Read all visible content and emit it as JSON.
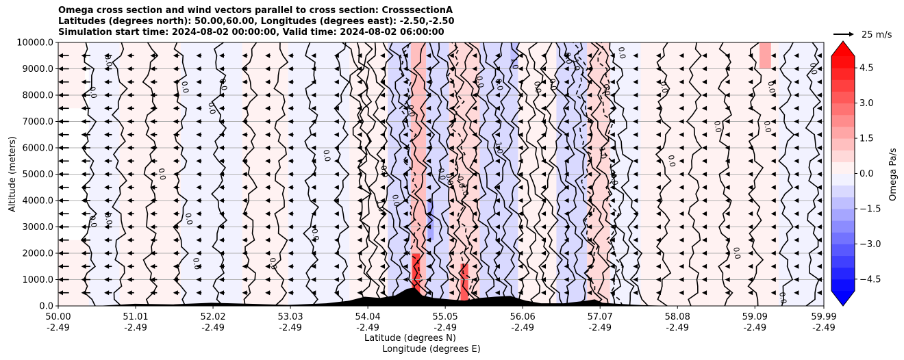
{
  "title_lines": [
    "Omega cross section and wind vectors parallel to cross section: CrosssectionA",
    "Latitudes (degrees north): 50.00,60.00, Longitudes (degrees east): -2.50,-2.50",
    "Simulation start time: 2024-08-02 00:00:00, Valid time: 2024-08-02 06:00:00"
  ],
  "quiver_key": {
    "label": "25 m/s",
    "speed": 25
  },
  "chart_data": {
    "type": "heatmap",
    "title": "Omega cross section and wind vectors parallel to cross section: CrosssectionA",
    "ylabel": "Altitude (meters)",
    "xlabel_lines": [
      "Latitude (degrees N)",
      "Longitude (degrees E)"
    ],
    "ylim": [
      0,
      10000
    ],
    "xlim": [
      50.0,
      59.99
    ],
    "y_ticks": [
      {
        "value": 0,
        "label": "0.0"
      },
      {
        "value": 1000,
        "label": "1000.0"
      },
      {
        "value": 2000,
        "label": "2000.0"
      },
      {
        "value": 3000,
        "label": "3000.0"
      },
      {
        "value": 4000,
        "label": "4000.0"
      },
      {
        "value": 5000,
        "label": "5000.0"
      },
      {
        "value": 6000,
        "label": "6000.0"
      },
      {
        "value": 7000,
        "label": "7000.0"
      },
      {
        "value": 8000,
        "label": "8000.0"
      },
      {
        "value": 9000,
        "label": "9000.0"
      },
      {
        "value": 10000,
        "label": "10000.0"
      }
    ],
    "x_ticks": [
      {
        "lat": 50.0,
        "lat_label": "50.00",
        "lon_label": "-2.49"
      },
      {
        "lat": 51.01,
        "lat_label": "51.01",
        "lon_label": "-2.49"
      },
      {
        "lat": 52.02,
        "lat_label": "52.02",
        "lon_label": "-2.49"
      },
      {
        "lat": 53.03,
        "lat_label": "53.03",
        "lon_label": "-2.49"
      },
      {
        "lat": 54.04,
        "lat_label": "54.04",
        "lon_label": "-2.49"
      },
      {
        "lat": 55.05,
        "lat_label": "55.05",
        "lon_label": "-2.49"
      },
      {
        "lat": 56.06,
        "lat_label": "56.06",
        "lon_label": "-2.49"
      },
      {
        "lat": 57.07,
        "lat_label": "57.07",
        "lon_label": "-2.49"
      },
      {
        "lat": 58.08,
        "lat_label": "58.08",
        "lon_label": "-2.49"
      },
      {
        "lat": 59.09,
        "lat_label": "59.09",
        "lon_label": "-2.49"
      },
      {
        "lat": 59.99,
        "lat_label": "59.99",
        "lon_label": "-2.49"
      }
    ],
    "grid": "horizontal",
    "colorbar": {
      "label": "Omega Pa/s",
      "min": -5.0,
      "max": 5.0,
      "extend": "both",
      "ticks": [
        {
          "value": 4.5,
          "label": "4.5"
        },
        {
          "value": 3.0,
          "label": "3.0"
        },
        {
          "value": 1.5,
          "label": "1.5"
        },
        {
          "value": 0.0,
          "label": "0.0"
        },
        {
          "value": -1.5,
          "label": "−1.5"
        },
        {
          "value": -3.0,
          "label": "−3.0"
        },
        {
          "value": -4.5,
          "label": "−4.5"
        }
      ],
      "neg_color": "#0000ff",
      "pos_color": "#ff0000",
      "over_color": "#ff0000",
      "under_color": "#0000ff",
      "levels": 20
    },
    "omega_fill": [
      {
        "lat_start": 50.0,
        "lat_end": 50.35,
        "alt_bottom": 7500,
        "alt_top": 10000,
        "omega": 0.3
      },
      {
        "lat_start": 50.0,
        "lat_end": 50.4,
        "alt_bottom": 0,
        "alt_top": 2500,
        "omega": 0.2
      },
      {
        "lat_start": 50.4,
        "lat_end": 50.8,
        "alt_bottom": 0,
        "alt_top": 10000,
        "omega": -0.2
      },
      {
        "lat_start": 50.8,
        "lat_end": 51.6,
        "alt_bottom": 0,
        "alt_top": 10000,
        "omega": 0.2
      },
      {
        "lat_start": 51.6,
        "lat_end": 52.4,
        "alt_bottom": 0,
        "alt_top": 10000,
        "omega": -0.2
      },
      {
        "lat_start": 52.4,
        "lat_end": 53.0,
        "alt_bottom": 0,
        "alt_top": 10000,
        "omega": 0.2
      },
      {
        "lat_start": 53.0,
        "lat_end": 53.8,
        "alt_bottom": 0,
        "alt_top": 10000,
        "omega": -0.2
      },
      {
        "lat_start": 53.8,
        "lat_end": 54.3,
        "alt_bottom": 0,
        "alt_top": 10000,
        "omega": 0.3
      },
      {
        "lat_start": 54.3,
        "lat_end": 54.6,
        "alt_bottom": 0,
        "alt_top": 10000,
        "omega": -0.8
      },
      {
        "lat_start": 54.6,
        "lat_end": 54.8,
        "alt_bottom": 0,
        "alt_top": 10000,
        "omega": 1.0
      },
      {
        "lat_start": 54.8,
        "lat_end": 55.1,
        "alt_bottom": 0,
        "alt_top": 10000,
        "omega": -0.6
      },
      {
        "lat_start": 55.1,
        "lat_end": 55.5,
        "alt_bottom": 0,
        "alt_top": 10000,
        "omega": 0.6
      },
      {
        "lat_start": 55.5,
        "lat_end": 56.0,
        "alt_bottom": 0,
        "alt_top": 10000,
        "omega": -1.0
      },
      {
        "lat_start": 56.0,
        "lat_end": 56.5,
        "alt_bottom": 0,
        "alt_top": 10000,
        "omega": 0.3
      },
      {
        "lat_start": 56.5,
        "lat_end": 56.9,
        "alt_bottom": 0,
        "alt_top": 10000,
        "omega": -0.6
      },
      {
        "lat_start": 56.9,
        "lat_end": 57.2,
        "alt_bottom": 0,
        "alt_top": 10000,
        "omega": 0.8
      },
      {
        "lat_start": 57.2,
        "lat_end": 57.6,
        "alt_bottom": 0,
        "alt_top": 10000,
        "omega": -0.4
      },
      {
        "lat_start": 57.6,
        "lat_end": 58.5,
        "alt_bottom": 0,
        "alt_top": 10000,
        "omega": 0.2
      },
      {
        "lat_start": 58.5,
        "lat_end": 59.4,
        "alt_bottom": 0,
        "alt_top": 10000,
        "omega": 0.2
      },
      {
        "lat_start": 59.4,
        "lat_end": 59.99,
        "alt_bottom": 0,
        "alt_top": 10000,
        "omega": -0.2
      },
      {
        "lat_start": 54.62,
        "lat_end": 54.72,
        "alt_bottom": 0,
        "alt_top": 2000,
        "omega": 3.5
      },
      {
        "lat_start": 55.25,
        "lat_end": 55.35,
        "alt_bottom": 0,
        "alt_top": 1600,
        "omega": 3.0
      },
      {
        "lat_start": 54.82,
        "lat_end": 54.9,
        "alt_bottom": 2500,
        "alt_top": 4000,
        "omega": -2.0
      },
      {
        "lat_start": 55.9,
        "lat_end": 56.0,
        "alt_bottom": 9000,
        "alt_top": 10000,
        "omega": -1.5
      },
      {
        "lat_start": 59.15,
        "lat_end": 59.3,
        "alt_bottom": 9000,
        "alt_top": 10000,
        "omega": 1.8
      }
    ],
    "wind_vectors": {
      "direction": "southward (toward lower latitude)",
      "lats": [
        50.0,
        50.3,
        50.6,
        50.9,
        51.2,
        51.5,
        51.8,
        52.1,
        52.4,
        52.7,
        53.0,
        53.3,
        53.6,
        53.9,
        54.2,
        54.5,
        54.8,
        55.1,
        55.4,
        55.7,
        56.0,
        56.3,
        56.6,
        56.9,
        57.2,
        57.5,
        57.8,
        58.1,
        58.4,
        58.7,
        59.0,
        59.3,
        59.6,
        59.9
      ],
      "alts": [
        500,
        1000,
        1500,
        2000,
        2500,
        3000,
        3500,
        4000,
        4500,
        5000,
        5500,
        6000,
        6500,
        7000,
        7500,
        8000,
        8500,
        9000,
        9500
      ],
      "speed_by_lat_ms": [
        14,
        12,
        10,
        9,
        9,
        8,
        7,
        7,
        7,
        7,
        7,
        6,
        5,
        4,
        4,
        4,
        4,
        4,
        4,
        4,
        4,
        4,
        4,
        4,
        4,
        4,
        3,
        3,
        3,
        3,
        3,
        3,
        3,
        3
      ]
    },
    "contour_lines": {
      "solid_label": "0.0",
      "dashed_label": "-1.0",
      "positive_label": "1.0",
      "solid_lats": [
        50.4,
        50.8,
        51.2,
        51.6,
        52.1,
        52.5,
        52.9,
        53.3,
        53.7,
        54.0,
        54.15,
        54.3,
        54.45,
        54.6,
        54.75,
        54.9,
        55.05,
        55.2,
        55.35,
        55.5,
        55.65,
        55.8,
        55.95,
        56.1,
        56.25,
        56.4,
        56.55,
        56.7,
        56.85,
        57.0,
        57.15,
        57.3,
        57.45,
        57.6,
        57.9,
        58.3,
        58.7,
        59.1,
        59.5,
        59.85
      ],
      "dashed_lats": [
        54.7,
        55.35,
        57.0,
        57.3
      ],
      "label_positions": [
        {
          "lat": 50.45,
          "alt": 8100,
          "text": "0.0"
        },
        {
          "lat": 50.45,
          "alt": 3200,
          "text": "0.0"
        },
        {
          "lat": 50.65,
          "alt": 9300,
          "text": "0.0"
        },
        {
          "lat": 50.65,
          "alt": 3300,
          "text": "0.0"
        },
        {
          "lat": 51.35,
          "alt": 5000,
          "text": "0.0"
        },
        {
          "lat": 51.65,
          "alt": 8300,
          "text": "0.0"
        },
        {
          "lat": 52.0,
          "alt": 7500,
          "text": "0.0"
        },
        {
          "lat": 51.7,
          "alt": 3300,
          "text": "0.0"
        },
        {
          "lat": 52.15,
          "alt": 8400,
          "text": "0.0"
        },
        {
          "lat": 51.8,
          "alt": 1600,
          "text": "0.0"
        },
        {
          "lat": 52.8,
          "alt": 1600,
          "text": "0.0"
        },
        {
          "lat": 53.35,
          "alt": 2700,
          "text": "0.0"
        },
        {
          "lat": 53.5,
          "alt": 5700,
          "text": "0.0"
        },
        {
          "lat": 54.25,
          "alt": 5100,
          "text": "0.0"
        },
        {
          "lat": 54.4,
          "alt": 4000,
          "text": "0.0"
        },
        {
          "lat": 54.2,
          "alt": 3800,
          "text": "1.0"
        },
        {
          "lat": 54.6,
          "alt": 7400,
          "text": "0.0"
        },
        {
          "lat": 55.0,
          "alt": 5000,
          "text": "0.0"
        },
        {
          "lat": 55.1,
          "alt": 4800,
          "text": "0.0"
        },
        {
          "lat": 55.25,
          "alt": 4700,
          "text": "0.0"
        },
        {
          "lat": 55.3,
          "alt": 4400,
          "text": "1.0"
        },
        {
          "lat": 55.5,
          "alt": 8500,
          "text": "0.0"
        },
        {
          "lat": 55.75,
          "alt": 6000,
          "text": "1.0"
        },
        {
          "lat": 55.75,
          "alt": 8400,
          "text": "0.0"
        },
        {
          "lat": 55.95,
          "alt": 9200,
          "text": "1.0"
        },
        {
          "lat": 56.25,
          "alt": 8300,
          "text": "0.0"
        },
        {
          "lat": 56.45,
          "alt": 8400,
          "text": "0.0"
        },
        {
          "lat": 56.65,
          "alt": 9400,
          "text": "0.0"
        },
        {
          "lat": 56.75,
          "alt": 9200,
          "text": "-1.0"
        },
        {
          "lat": 57.1,
          "alt": 5800,
          "text": "1.0"
        },
        {
          "lat": 57.15,
          "alt": 8200,
          "text": "0.0"
        },
        {
          "lat": 57.25,
          "alt": 4800,
          "text": "0.0"
        },
        {
          "lat": 57.35,
          "alt": 9600,
          "text": "0.0"
        },
        {
          "lat": 57.9,
          "alt": 8300,
          "text": "0.0"
        },
        {
          "lat": 58.0,
          "alt": 5500,
          "text": "0.0"
        },
        {
          "lat": 58.6,
          "alt": 6800,
          "text": "0.0"
        },
        {
          "lat": 58.85,
          "alt": 2000,
          "text": "0.0"
        },
        {
          "lat": 59.25,
          "alt": 6800,
          "text": "0.0"
        },
        {
          "lat": 59.3,
          "alt": 8300,
          "text": "0.0"
        },
        {
          "lat": 59.85,
          "alt": 9000,
          "text": "0.0"
        },
        {
          "lat": 59.45,
          "alt": 300,
          "text": "0.0"
        }
      ]
    },
    "terrain": {
      "lats": [
        50.0,
        50.5,
        50.8,
        51.0,
        51.5,
        52.0,
        52.5,
        53.0,
        53.5,
        53.8,
        54.0,
        54.2,
        54.4,
        54.55,
        54.65,
        54.75,
        54.9,
        55.1,
        55.3,
        55.5,
        55.7,
        55.9,
        56.1,
        56.3,
        56.6,
        56.9,
        57.0,
        57.1,
        57.3,
        57.6,
        58.0,
        59.99
      ],
      "heights_m": [
        0,
        0,
        50,
        80,
        60,
        120,
        80,
        40,
        100,
        200,
        350,
        300,
        400,
        650,
        700,
        400,
        300,
        250,
        200,
        300,
        350,
        380,
        200,
        100,
        100,
        200,
        250,
        120,
        80,
        30,
        0,
        0
      ]
    }
  }
}
